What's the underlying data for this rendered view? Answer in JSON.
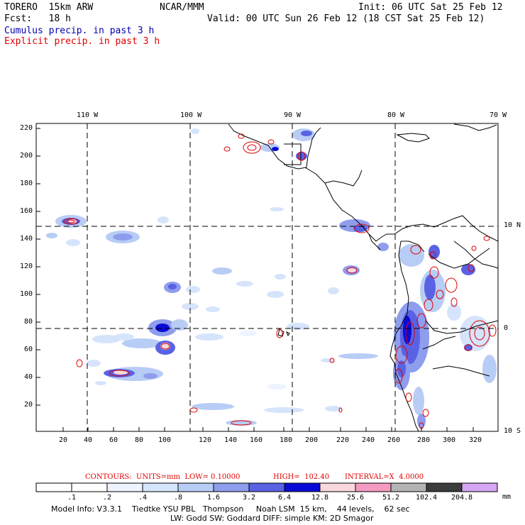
{
  "header": {
    "model": "TORERO  15km ARW",
    "org": "NCAR/MMM",
    "init": "Init: 06 UTC Sat 25 Feb 12",
    "fcst": "Fcst:   18 h",
    "valid": "Valid: 00 UTC Sun 26 Feb 12 (18 CST Sat 25 Feb 12)",
    "legend_cumulus": "Cumulus precip. in past 3 h",
    "legend_explicit": "Explicit precip. in past 3 h"
  },
  "map": {
    "lon_labels": [
      "110 W",
      "100 W",
      "90 W",
      "80 W",
      "70 W"
    ],
    "lat_labels": [
      "10 N",
      "0",
      "10 S"
    ],
    "y_ticks": [
      "220",
      "200",
      "180",
      "160",
      "140",
      "120",
      "100",
      "80",
      "60",
      "40",
      "20"
    ],
    "x_ticks": [
      "20",
      "40",
      "60",
      "80",
      "100",
      "120",
      "140",
      "160",
      "180",
      "200",
      "220",
      "240",
      "260",
      "280",
      "300",
      "320"
    ]
  },
  "contours": {
    "label": "CONTOURS:  UNITS=mm  LOW= 0.10000",
    "high": "HIGH=  102.40",
    "interval": "INTERVAL=X  4.0000"
  },
  "colorbar": {
    "labels": [
      ".1",
      ".2",
      ".4",
      ".8",
      "1.6",
      "3.2",
      "6.4",
      "12.8",
      "25.6",
      "51.2",
      "102.4",
      "204.8"
    ],
    "unit": "mm",
    "colors": [
      "#ffffff",
      "#ffffff",
      "#eef4ff",
      "#d6e4fb",
      "#b8cdf5",
      "#8e9ded",
      "#5a62e4",
      "#0a0ad6",
      "#f8d8dc",
      "#f59ac0",
      "#b4b4b4",
      "#3c3c3c",
      "#d6a6f5"
    ]
  },
  "footer": {
    "line1": "Model Info: V3.3.1    Tiedtke YSU PBL   Thompson     Noah LSM  15 km,    44 levels,    62 sec",
    "line2": "LW: Godd SW: Goddard DIFF: simple KM: 2D Smagor"
  }
}
